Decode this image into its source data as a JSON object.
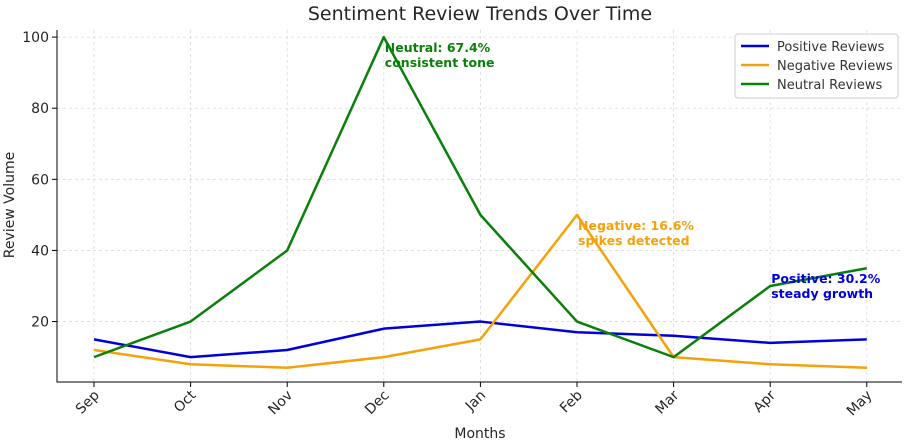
{
  "chart_data": {
    "type": "line",
    "title": "Sentiment Review Trends Over Time",
    "xlabel": "Months",
    "ylabel": "Review Volume",
    "categories": [
      "Sep",
      "Oct",
      "Nov",
      "Dec",
      "Jan",
      "Feb",
      "Mar",
      "Apr",
      "May"
    ],
    "ylim": [
      3,
      102
    ],
    "yticks": [
      20,
      40,
      60,
      80,
      100
    ],
    "grid": true,
    "legend_position": "top-right",
    "series": [
      {
        "name": "Positive Reviews",
        "color": "#0000dd",
        "values": [
          15,
          10,
          12,
          18,
          20,
          17,
          16,
          14,
          15
        ]
      },
      {
        "name": "Negative Reviews",
        "color": "#f5a10a",
        "values": [
          12,
          8,
          7,
          10,
          15,
          50,
          10,
          8,
          7
        ]
      },
      {
        "name": "Neutral Reviews",
        "color": "#0a800a",
        "values": [
          10,
          20,
          40,
          100,
          50,
          20,
          10,
          30,
          35
        ]
      }
    ],
    "annotations": [
      {
        "lines": [
          "Neutral: 67.4%",
          "consistent tone"
        ],
        "x": "Dec",
        "y": 100,
        "color": "#0a800a"
      },
      {
        "lines": [
          "Negative: 16.6%",
          "spikes detected"
        ],
        "x": "Feb",
        "y": 50,
        "color": "#f5a10a"
      },
      {
        "lines": [
          "Positive: 30.2%",
          "steady growth"
        ],
        "x": "Apr",
        "y": 35,
        "color": "#0000dd"
      }
    ]
  }
}
